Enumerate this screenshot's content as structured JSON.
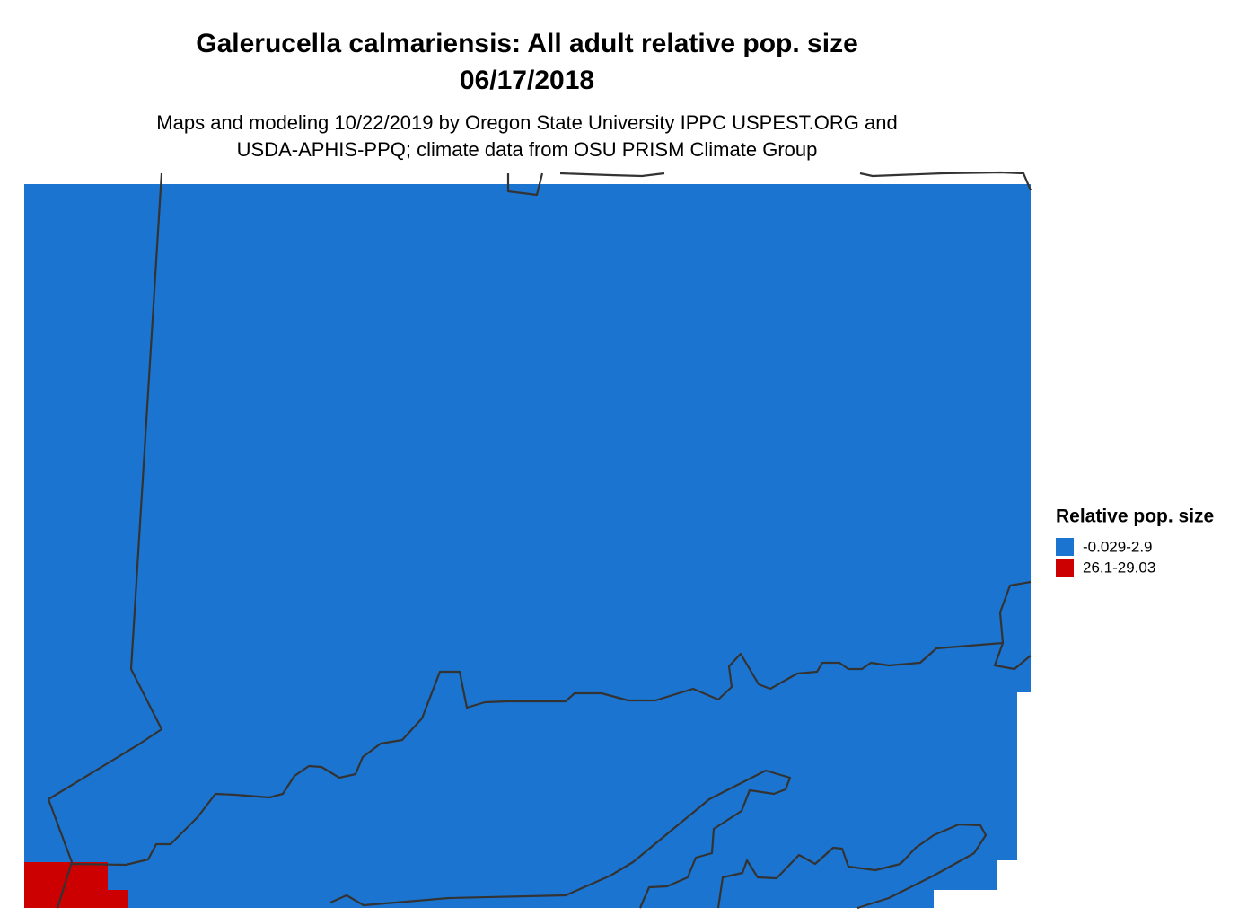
{
  "header": {
    "title": "Galerucella calmariensis: All adult relative pop. size",
    "date": "06/17/2018",
    "subtitle": [
      "Maps and modeling 10/22/2019 by Oregon State University IPPC USPEST.ORG and",
      "USDA-APHIS-PPQ; climate data from OSU PRISM Climate Group"
    ]
  },
  "legend": {
    "title": "Relative pop. size",
    "entries": [
      {
        "label": "-0.029-2.9",
        "color": "#1b75d0"
      },
      {
        "label": "26.1-29.03",
        "color": "#cc0000"
      }
    ]
  }
}
